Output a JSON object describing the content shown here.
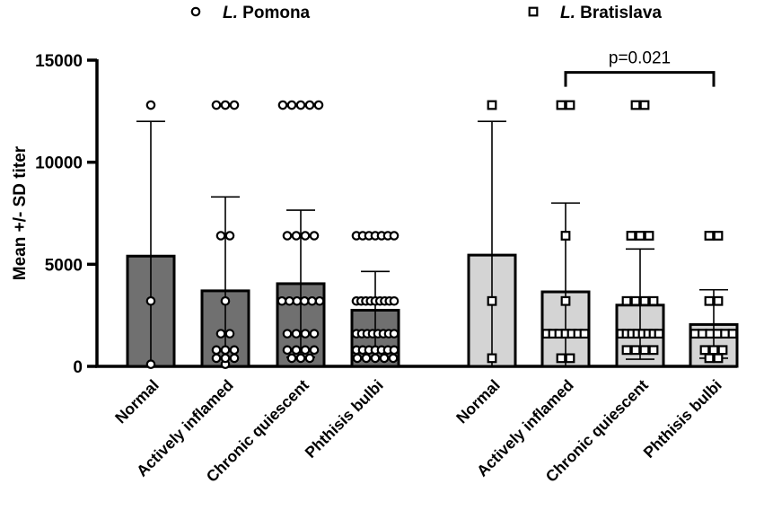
{
  "chart_data": {
    "type": "bar",
    "ylabel": "Mean +/- SD titer",
    "ylim": [
      0,
      15000
    ],
    "yticks": [
      0,
      5000,
      10000,
      15000
    ],
    "ytick_labels": [
      "0",
      "5000",
      "10000",
      "15000"
    ],
    "legend": [
      {
        "italic": "L.",
        "name": "Pomona",
        "marker": "circle"
      },
      {
        "italic": "L.",
        "name": "Bratislava",
        "marker": "square"
      }
    ],
    "groups": [
      {
        "name": "L. Pomona",
        "marker": "circle",
        "fill": "#707070",
        "categories": [
          "Normal",
          "Actively inflamed",
          "Chronic quiescent",
          "Phthisis bulbi"
        ],
        "means": [
          5400,
          3700,
          4050,
          2750
        ],
        "sd_upper": [
          12000,
          8300,
          7650,
          4650
        ],
        "sd_lower": [
          0,
          0,
          450,
          850
        ],
        "points": [
          [
            12800,
            3200,
            100
          ],
          [
            12800,
            12800,
            12800,
            6400,
            6400,
            3200,
            1600,
            1600,
            800,
            800,
            800,
            400,
            400,
            400,
            100
          ],
          [
            12800,
            12800,
            12800,
            12800,
            12800,
            6400,
            6400,
            6400,
            6400,
            3200,
            3200,
            3200,
            3200,
            3200,
            3200,
            1600,
            1600,
            1600,
            1600,
            800,
            800,
            800,
            800,
            400,
            400,
            400
          ],
          [
            6400,
            6400,
            6400,
            6400,
            6400,
            6400,
            6400,
            3200,
            3200,
            3200,
            3200,
            3200,
            3200,
            3200,
            3200,
            3200,
            1600,
            1600,
            1600,
            1600,
            1600,
            1600,
            1600,
            1600,
            800,
            800,
            800,
            800,
            800,
            800,
            800,
            400,
            400,
            400,
            400,
            400
          ]
        ]
      },
      {
        "name": "L. Bratislava",
        "marker": "square",
        "fill": "#d4d4d4",
        "categories": [
          "Normal",
          "Actively inflamed",
          "Chronic quiescent",
          "Phthisis bulbi"
        ],
        "means": [
          5450,
          3650,
          3000,
          2050
        ],
        "sd_upper": [
          12000,
          8000,
          5750,
          3750
        ],
        "sd_lower": [
          0,
          0,
          350,
          400
        ],
        "points": [
          [
            12800,
            3200,
            400
          ],
          [
            12800,
            12800,
            6400,
            3200,
            1600,
            1600,
            1600,
            1600,
            1600,
            1600,
            1600,
            400,
            400
          ],
          [
            12800,
            12800,
            6400,
            6400,
            6400,
            3200,
            3200,
            3200,
            3200,
            1600,
            1600,
            1600,
            1600,
            1600,
            1600,
            1600,
            1600,
            800,
            800,
            800,
            800
          ],
          [
            6400,
            6400,
            3200,
            3200,
            1600,
            1600,
            1600,
            1600,
            1600,
            1600,
            800,
            800,
            800,
            400,
            400
          ]
        ]
      }
    ],
    "annotations": [
      {
        "text": "p=0.021",
        "group": 1,
        "from_category": 1,
        "to_category": 3,
        "at_value": 14400
      }
    ]
  }
}
